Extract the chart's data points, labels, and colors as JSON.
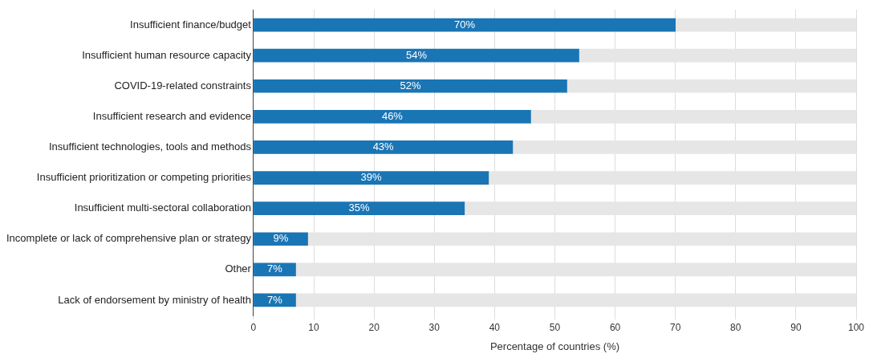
{
  "chart_data": {
    "type": "bar",
    "orientation": "horizontal",
    "xlabel": "Percentage of countries (%)",
    "categories": [
      "Insufficient finance/budget",
      "Insufficient human resource capacity",
      "COVID-19-related constraints",
      "Insufficient research and evidence",
      "Insufficient technologies, tools and methods",
      "Insufficient prioritization or competing priorities",
      "Insufficient multi-sectoral collaboration",
      "Incomplete or lack of comprehensive plan or strategy",
      "Other",
      "Lack of endorsement by ministry of health"
    ],
    "series": [
      {
        "color": "#1a75b5",
        "values": [
          70,
          54,
          52,
          46,
          43,
          39,
          35,
          9,
          7,
          7
        ],
        "value_labels": [
          "70%",
          "54%",
          "52%",
          "46%",
          "43%",
          "39%",
          "35%",
          "9%",
          "7%",
          "7%"
        ]
      },
      {
        "color": "#e6e6e6",
        "values": [
          30,
          46,
          48,
          54,
          57,
          61,
          65,
          91,
          93,
          93
        ]
      }
    ],
    "stacked": true,
    "xlim": [
      0,
      100
    ],
    "xticks": [
      0,
      10,
      20,
      30,
      40,
      50,
      60,
      70,
      80,
      90,
      100
    ],
    "grid": "x",
    "legend": false
  }
}
